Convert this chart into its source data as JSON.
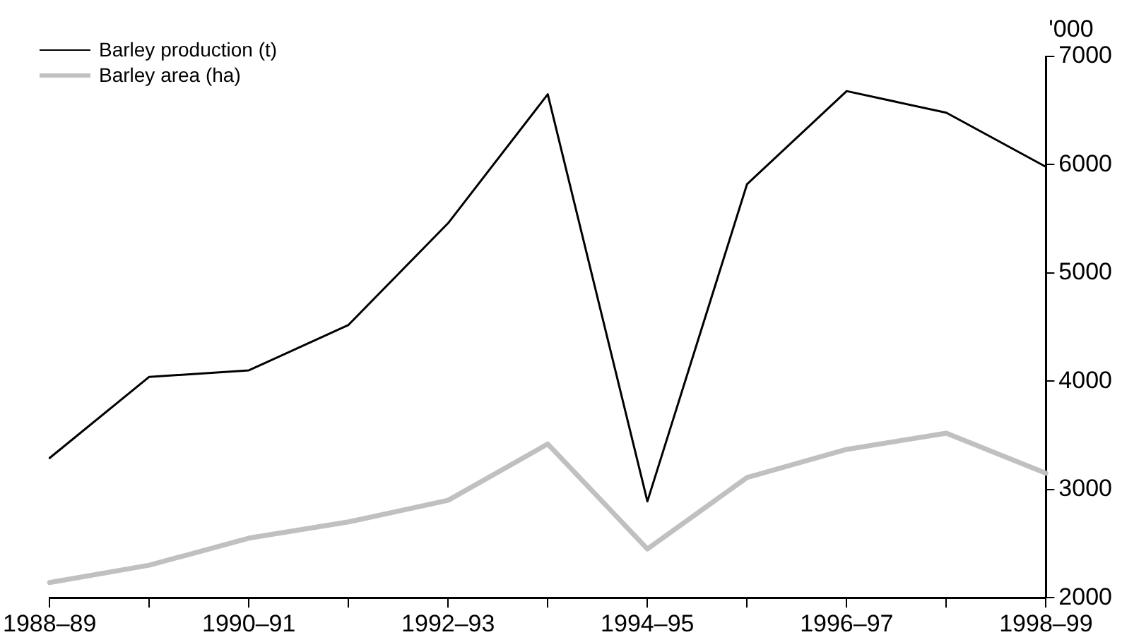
{
  "chart_data": {
    "type": "line",
    "ylabel": "'000",
    "categories": [
      "1988–89",
      null,
      "1990–91",
      null,
      "1992–93",
      null,
      "1994–95",
      null,
      "1996–97",
      null,
      "1998–99"
    ],
    "series": [
      {
        "name": "Barley production (t)",
        "color": "#000000",
        "values": [
          3290,
          4040,
          4100,
          4520,
          5460,
          6650,
          2890,
          5820,
          6680,
          6480,
          5980
        ]
      },
      {
        "name": "Barley area (ha)",
        "color": "#c0c0c0",
        "values": [
          2140,
          2300,
          2550,
          2700,
          2900,
          3420,
          2450,
          3110,
          3370,
          3520,
          3150
        ]
      }
    ],
    "ylim": [
      2000,
      7000
    ],
    "yticks": [
      2000,
      3000,
      4000,
      5000,
      6000,
      7000
    ],
    "grid": false,
    "legend": "top left",
    "marker": "none",
    "line_style": "solid"
  }
}
